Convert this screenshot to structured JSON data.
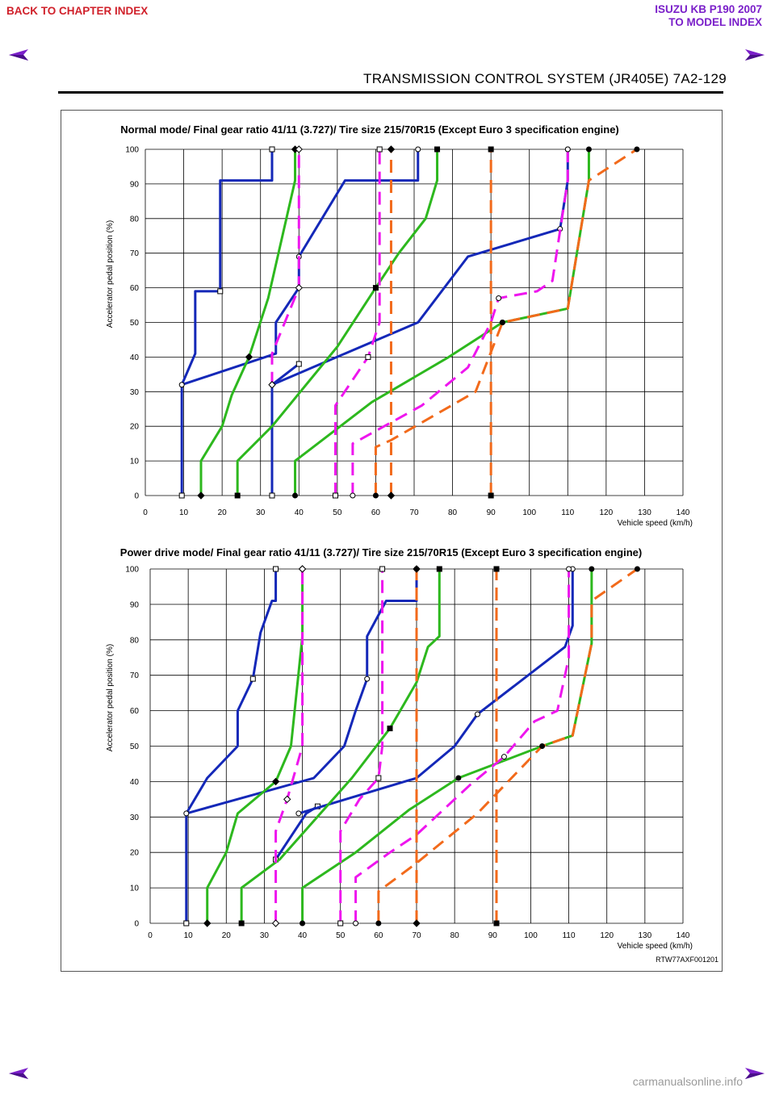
{
  "header": {
    "back_link": "BACK TO CHAPTER INDEX",
    "model_line1": "ISUZU KB P190 2007",
    "model_line2": "TO MODEL INDEX",
    "doc_title": "TRANSMISSION CONTROL SYSTEM (JR405E)   7A2-129"
  },
  "figure_code": "RTW77AXF001201",
  "watermark": "carmanualsonline.info",
  "colors": {
    "upshift": "#1428b8",
    "downshift_slip": "#2db81e",
    "lockup_on": "#ee16ee",
    "lockup_off": "#f26a1b",
    "grid": "#000000"
  },
  "chart_data": [
    {
      "type": "line",
      "title": "Normal mode/ Final gear ratio 41/11 (3.727)/ Tire size 215/70R15  (Except Euro 3 specification engine)",
      "xlabel": "Vehicle speed (km/h)",
      "ylabel": "Accelerator pedal position (%)",
      "xlim": [
        0,
        140
      ],
      "ylim": [
        0,
        100
      ],
      "x_ticks": [
        0,
        10,
        20,
        30,
        40,
        50,
        60,
        70,
        80,
        90,
        100,
        110,
        120,
        130,
        140
      ],
      "y_ticks": [
        0,
        10,
        20,
        30,
        40,
        50,
        60,
        70,
        80,
        90,
        100
      ],
      "grid": true,
      "series": [
        {
          "style": "blue",
          "marker": "square",
          "points": [
            [
              9.5,
              0
            ],
            [
              9.5,
              32
            ],
            [
              13,
              41
            ],
            [
              13,
              59
            ],
            [
              19.5,
              59
            ],
            [
              19.5,
              91
            ],
            [
              33,
              91
            ],
            [
              33,
              100
            ]
          ]
        },
        {
          "style": "blue",
          "marker": "square",
          "points": [
            [
              33,
              0
            ],
            [
              33,
              32
            ],
            [
              40,
              38
            ]
          ]
        },
        {
          "style": "blue",
          "marker": "circle",
          "points": [
            [
              9.5,
              32
            ],
            [
              34,
              41
            ],
            [
              34,
              50
            ],
            [
              40,
              60
            ],
            [
              40,
              69
            ],
            [
              52,
              91
            ],
            [
              71,
              91
            ],
            [
              71,
              100
            ]
          ]
        },
        {
          "style": "blue",
          "marker": "circle",
          "points": [
            [
              33,
              32
            ],
            [
              71,
              50
            ],
            [
              84,
              69
            ],
            [
              108,
              77
            ],
            [
              110,
              91
            ],
            [
              110,
              100
            ]
          ]
        },
        {
          "style": "green",
          "marker": "diamond",
          "points": [
            [
              14.5,
              0
            ],
            [
              14.5,
              10
            ],
            [
              20,
              20
            ],
            [
              22.5,
              29
            ],
            [
              27,
              40
            ],
            [
              32,
              57
            ],
            [
              39,
              91
            ],
            [
              39,
              100
            ]
          ]
        },
        {
          "style": "green",
          "marker": "square",
          "points": [
            [
              24,
              0
            ],
            [
              24,
              10
            ],
            [
              33,
              20
            ],
            [
              50,
              43
            ],
            [
              60,
              60
            ],
            [
              66,
              70
            ],
            [
              73,
              80
            ],
            [
              76,
              91
            ],
            [
              76,
              100
            ]
          ]
        },
        {
          "style": "green",
          "marker": "circle",
          "points": [
            [
              39,
              0
            ],
            [
              39,
              10
            ],
            [
              59,
              27
            ],
            [
              79,
              40
            ],
            [
              93,
              50
            ],
            [
              110,
              54
            ],
            [
              115.5,
              91
            ],
            [
              115.5,
              100
            ]
          ]
        },
        {
          "style": "magenta",
          "marker": "diamond",
          "points": [
            [
              33,
              32
            ],
            [
              33,
              41
            ],
            [
              40,
              60
            ],
            [
              40,
              100
            ]
          ]
        },
        {
          "style": "magenta",
          "marker": "square",
          "points": [
            [
              49.5,
              0
            ],
            [
              49.5,
              26
            ],
            [
              58,
              40
            ],
            [
              61,
              50
            ],
            [
              61,
              100
            ]
          ]
        },
        {
          "style": "magenta",
          "marker": "circle",
          "points": [
            [
              54,
              0
            ],
            [
              54,
              15
            ],
            [
              72,
              26
            ],
            [
              84,
              37
            ],
            [
              90,
              50
            ],
            [
              92,
              57
            ],
            [
              102,
              59
            ],
            [
              106,
              62
            ],
            [
              110,
              91
            ],
            [
              110,
              100
            ]
          ]
        },
        {
          "style": "orange",
          "marker": "diamond",
          "points": [
            [
              64,
              0
            ],
            [
              64,
              100
            ]
          ]
        },
        {
          "style": "orange",
          "marker": "square",
          "points": [
            [
              90,
              0
            ],
            [
              90,
              100
            ]
          ]
        },
        {
          "style": "orange",
          "marker": "circle",
          "points": [
            [
              60,
              0
            ],
            [
              60,
              14
            ],
            [
              64,
              16
            ],
            [
              86,
              30
            ],
            [
              93,
              50
            ],
            [
              110,
              54
            ],
            [
              115.5,
              91
            ],
            [
              128,
              100
            ]
          ]
        }
      ]
    },
    {
      "type": "line",
      "title": "Power drive mode/ Final gear ratio 41/11 (3.727)/ Tire size 215/70R15 (Except Euro 3 specification engine)",
      "xlabel": "Vehicle speed (km/h)",
      "ylabel": "Accelerator pedal position (%)",
      "xlim": [
        0,
        140
      ],
      "ylim": [
        0,
        100
      ],
      "x_ticks": [
        0,
        10,
        20,
        30,
        40,
        50,
        60,
        70,
        80,
        90,
        100,
        110,
        120,
        130,
        140
      ],
      "y_ticks": [
        0,
        10,
        20,
        30,
        40,
        50,
        60,
        70,
        80,
        90,
        100
      ],
      "grid": true,
      "series": [
        {
          "style": "blue",
          "marker": "square",
          "points": [
            [
              9.5,
              0
            ],
            [
              9.5,
              31
            ],
            [
              15,
              41
            ],
            [
              23,
              50
            ],
            [
              23,
              60
            ],
            [
              27,
              69
            ],
            [
              29,
              82
            ],
            [
              32,
              91
            ],
            [
              33,
              91
            ],
            [
              33,
              100
            ]
          ]
        },
        {
          "style": "blue",
          "marker": "square",
          "points": [
            [
              33,
              18
            ],
            [
              41,
              31
            ],
            [
              44,
              33
            ]
          ]
        },
        {
          "style": "blue",
          "marker": "circle",
          "points": [
            [
              9.5,
              31
            ],
            [
              43,
              41
            ],
            [
              51,
              50
            ],
            [
              54,
              60
            ],
            [
              57,
              69
            ],
            [
              57,
              81
            ],
            [
              62,
              91
            ],
            [
              70,
              91
            ],
            [
              70,
              100
            ]
          ]
        },
        {
          "style": "blue",
          "marker": "circle",
          "points": [
            [
              39,
              31
            ],
            [
              70,
              41
            ],
            [
              80,
              50
            ],
            [
              86,
              59
            ],
            [
              109,
              78
            ],
            [
              111,
              84
            ],
            [
              111,
              100
            ]
          ]
        },
        {
          "style": "green",
          "marker": "diamond",
          "points": [
            [
              15,
              0
            ],
            [
              15,
              10
            ],
            [
              20,
              20
            ],
            [
              23,
              31
            ],
            [
              33,
              40
            ],
            [
              37,
              50
            ],
            [
              40,
              81
            ],
            [
              40,
              100
            ]
          ]
        },
        {
          "style": "green",
          "marker": "square",
          "points": [
            [
              24,
              0
            ],
            [
              24,
              10
            ],
            [
              34,
              18
            ],
            [
              53,
              41
            ],
            [
              63,
              55
            ],
            [
              70,
              68
            ],
            [
              73,
              78
            ],
            [
              76,
              81
            ],
            [
              76,
              100
            ]
          ]
        },
        {
          "style": "green",
          "marker": "circle",
          "points": [
            [
              40,
              0
            ],
            [
              40,
              10
            ],
            [
              54,
              20
            ],
            [
              68,
              32
            ],
            [
              81,
              41
            ],
            [
              103,
              50
            ],
            [
              111,
              53
            ],
            [
              116,
              79
            ],
            [
              116,
              100
            ]
          ]
        },
        {
          "style": "magenta",
          "marker": "diamond",
          "points": [
            [
              33,
              0
            ],
            [
              33,
              26
            ],
            [
              36,
              35
            ],
            [
              40,
              50
            ],
            [
              40,
              100
            ]
          ]
        },
        {
          "style": "magenta",
          "marker": "square",
          "points": [
            [
              50,
              0
            ],
            [
              50,
              26
            ],
            [
              55,
              35
            ],
            [
              60,
              41
            ],
            [
              61,
              50
            ],
            [
              61,
              100
            ]
          ]
        },
        {
          "style": "magenta",
          "marker": "circle",
          "points": [
            [
              54,
              0
            ],
            [
              54,
              13
            ],
            [
              63,
              20
            ],
            [
              70,
              25
            ],
            [
              84,
              39
            ],
            [
              93,
              47
            ],
            [
              101,
              57
            ],
            [
              107,
              60
            ],
            [
              110,
              75
            ],
            [
              110,
              100
            ]
          ]
        },
        {
          "style": "orange",
          "marker": "diamond",
          "points": [
            [
              70,
              0
            ],
            [
              70,
              100
            ]
          ]
        },
        {
          "style": "orange",
          "marker": "square",
          "points": [
            [
              91,
              0
            ],
            [
              91,
              100
            ]
          ]
        },
        {
          "style": "orange",
          "marker": "circle",
          "points": [
            [
              60,
              0
            ],
            [
              60,
              9
            ],
            [
              70,
              17
            ],
            [
              86,
              31
            ],
            [
              103,
              50
            ],
            [
              111,
              53
            ],
            [
              116,
              79
            ],
            [
              116,
              91
            ],
            [
              128,
              100
            ]
          ]
        }
      ],
      "markers": [
        {
          "marker": "circle-open",
          "x": [
            110,
            110,
            70,
            93,
            111
          ]
        },
        {
          "marker": "circle-filled",
          "x": [
            103,
            116
          ]
        }
      ]
    }
  ]
}
